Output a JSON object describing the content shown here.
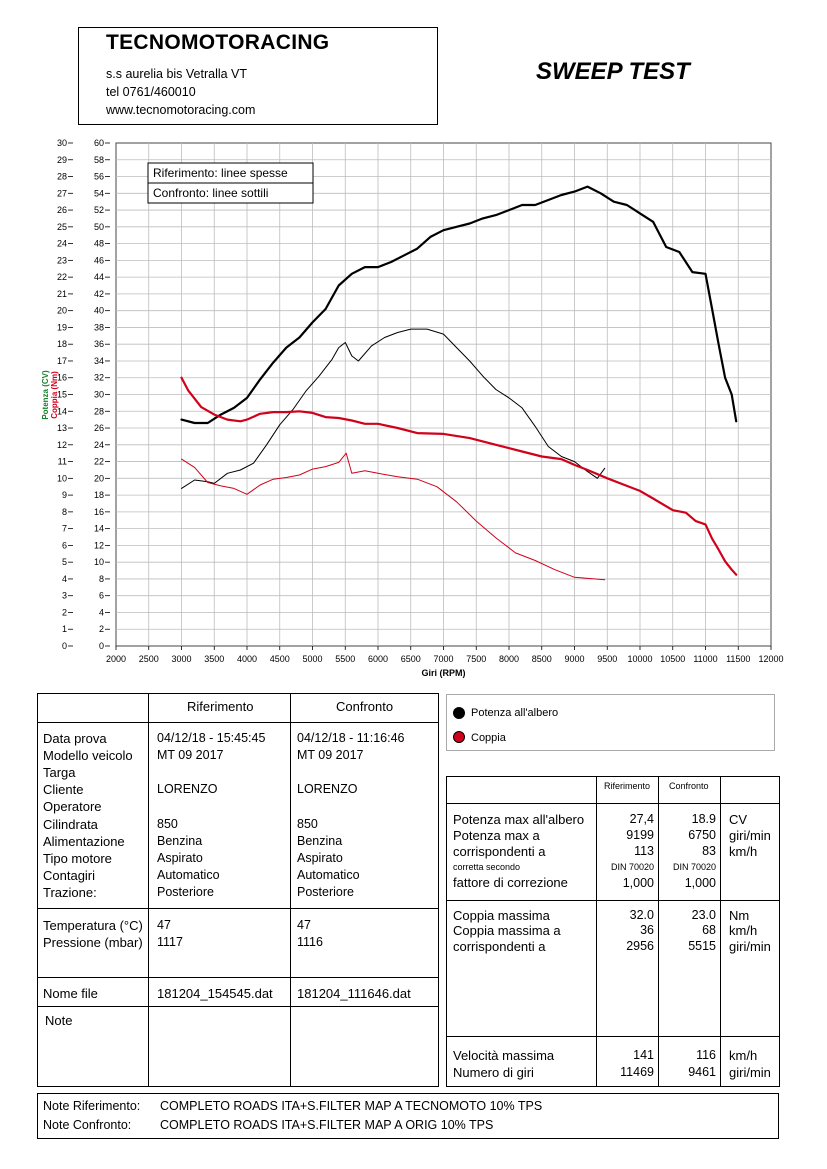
{
  "header": {
    "company": "TECNOMOTORACING",
    "address": "s.s aurelia bis  Vetralla  VT",
    "phone": "tel 0761/460010",
    "web": "www.tecnomotoracing.com",
    "title": "SWEEP TEST"
  },
  "chart_data": {
    "type": "line",
    "xlabel": "Giri (RPM)",
    "ylabel_power": "Potenza (CV)",
    "ylabel_torque": "Coppia (Nm)",
    "xlim": [
      2000,
      12000
    ],
    "x_ticks": [
      2000,
      2500,
      3000,
      3500,
      4000,
      4500,
      5000,
      5500,
      6000,
      6500,
      7000,
      7500,
      8000,
      8500,
      9000,
      9500,
      10000,
      10500,
      11000,
      11500,
      12000
    ],
    "ylim_power": [
      0,
      30
    ],
    "ylim_torque": [
      0,
      60
    ],
    "power_ticks": [
      0,
      1,
      2,
      3,
      4,
      5,
      6,
      7,
      8,
      9,
      10,
      11,
      12,
      13,
      14,
      15,
      16,
      17,
      18,
      19,
      20,
      21,
      22,
      23,
      24,
      25,
      26,
      27,
      28,
      29,
      30
    ],
    "torque_ticks": [
      0,
      2,
      4,
      6,
      8,
      10,
      12,
      14,
      16,
      18,
      20,
      22,
      24,
      26,
      28,
      30,
      32,
      34,
      36,
      38,
      40,
      42,
      44,
      46,
      48,
      50,
      52,
      54,
      56,
      58,
      60
    ],
    "grid": true,
    "legend_box": [
      "Riferimento: linee spesse",
      "Confronto: linee sottili"
    ],
    "series": [
      {
        "name": "Potenza all'albero",
        "run": "Riferimento",
        "color": "#000000",
        "width": 2.2,
        "axis": "power",
        "x": [
          3000,
          3200,
          3400,
          3600,
          3800,
          4000,
          4200,
          4400,
          4600,
          4800,
          5000,
          5200,
          5400,
          5600,
          5800,
          6000,
          6200,
          6400,
          6600,
          6800,
          7000,
          7200,
          7400,
          7600,
          7800,
          8000,
          8200,
          8400,
          8600,
          8800,
          9000,
          9199,
          9400,
          9600,
          9800,
          10000,
          10200,
          10400,
          10600,
          10800,
          11000,
          11100,
          11200,
          11300,
          11400,
          11469
        ],
        "y": [
          13.5,
          13.3,
          13.3,
          13.8,
          14.2,
          14.8,
          15.9,
          16.9,
          17.8,
          18.4,
          19.3,
          20.1,
          21.5,
          22.2,
          22.6,
          22.6,
          22.9,
          23.3,
          23.7,
          24.4,
          24.8,
          25.0,
          25.2,
          25.5,
          25.7,
          26.0,
          26.3,
          26.3,
          26.6,
          26.9,
          27.1,
          27.4,
          27.0,
          26.5,
          26.3,
          25.8,
          25.3,
          23.8,
          23.5,
          22.3,
          22.2,
          20.1,
          18.0,
          16.0,
          15.0,
          13.4
        ]
      },
      {
        "name": "Potenza all'albero",
        "run": "Confronto",
        "color": "#000000",
        "width": 1.0,
        "axis": "power",
        "x": [
          3000,
          3200,
          3400,
          3500,
          3700,
          3900,
          4100,
          4300,
          4500,
          4700,
          4900,
          5100,
          5300,
          5400,
          5500,
          5600,
          5700,
          5900,
          6100,
          6300,
          6500,
          6750,
          7000,
          7200,
          7400,
          7600,
          7800,
          8000,
          8200,
          8400,
          8600,
          8800,
          9000,
          9200,
          9350,
          9461
        ],
        "y": [
          9.4,
          9.9,
          9.8,
          9.7,
          10.3,
          10.5,
          10.9,
          12.0,
          13.2,
          14.1,
          15.2,
          16.1,
          17.1,
          17.8,
          18.1,
          17.3,
          17.0,
          17.9,
          18.4,
          18.7,
          18.9,
          18.9,
          18.6,
          17.8,
          17.0,
          16.1,
          15.3,
          14.8,
          14.2,
          13.1,
          11.9,
          11.3,
          11.0,
          10.4,
          10.0,
          10.6
        ]
      },
      {
        "name": "Coppia",
        "run": "Riferimento",
        "color": "#d0021b",
        "width": 2.2,
        "axis": "torque",
        "x": [
          3000,
          3100,
          3300,
          3500,
          3700,
          3900,
          4000,
          4200,
          4400,
          4600,
          4800,
          5000,
          5200,
          5400,
          5600,
          5800,
          6000,
          6300,
          6600,
          7000,
          7400,
          7800,
          8200,
          8500,
          8800,
          9000,
          9200,
          9500,
          9800,
          10000,
          10200,
          10500,
          10700,
          10850,
          11000,
          11100,
          11200,
          11300,
          11400,
          11469
        ],
        "y": [
          32.0,
          30.5,
          28.5,
          27.6,
          27.0,
          26.8,
          27.0,
          27.7,
          27.9,
          27.9,
          28.0,
          27.8,
          27.3,
          27.2,
          26.9,
          26.5,
          26.5,
          26.0,
          25.4,
          25.3,
          24.8,
          24.0,
          23.2,
          22.6,
          22.3,
          21.6,
          21.0,
          20.0,
          19.1,
          18.5,
          17.6,
          16.2,
          15.9,
          14.9,
          14.5,
          12.8,
          11.5,
          10.1,
          9.1,
          8.5
        ]
      },
      {
        "name": "Coppia",
        "run": "Confronto",
        "color": "#d0021b",
        "width": 1.0,
        "axis": "torque",
        "x": [
          3000,
          3200,
          3400,
          3600,
          3800,
          4000,
          4200,
          4400,
          4600,
          4800,
          5000,
          5200,
          5400,
          5515,
          5600,
          5800,
          6000,
          6300,
          6600,
          6900,
          7200,
          7500,
          7800,
          8100,
          8400,
          8700,
          9000,
          9300,
          9461
        ],
        "y": [
          22.3,
          21.3,
          19.5,
          19.1,
          18.8,
          18.1,
          19.2,
          19.9,
          20.1,
          20.4,
          21.1,
          21.4,
          21.9,
          23.0,
          20.6,
          20.9,
          20.6,
          20.2,
          19.9,
          19.0,
          17.2,
          14.9,
          12.9,
          11.1,
          10.2,
          9.1,
          8.2,
          8.0,
          7.9
        ]
      }
    ]
  },
  "legend": [
    {
      "label": "Potenza all'albero",
      "color": "#000000"
    },
    {
      "label": "Coppia",
      "color": "#d0021b"
    }
  ],
  "table": {
    "col_riferimento": "Riferimento",
    "col_confronto": "Confronto",
    "labels": [
      "Data prova",
      "Modello veicolo",
      "Targa",
      "Cliente",
      "Operatore",
      "Cilindrata",
      "Alimentazione",
      "Tipo motore",
      "Contagiri",
      "Trazione:"
    ],
    "riferimento": [
      "04/12/18 - 15:45:45",
      "MT 09 2017",
      "",
      "LORENZO",
      "",
      "850",
      "Benzina",
      "Aspirato",
      "Automatico",
      "Posteriore"
    ],
    "confronto": [
      "04/12/18 - 11:16:46",
      "MT 09 2017",
      "",
      "LORENZO",
      "",
      "850",
      "Benzina",
      "Aspirato",
      "Automatico",
      "Posteriore"
    ],
    "env_labels": [
      "Temperatura (°C)",
      "Pressione (mbar)"
    ],
    "env_riferimento": [
      "47",
      "1117"
    ],
    "env_confronto": [
      "47",
      "1116"
    ],
    "file_label": "Nome file",
    "file_riferimento": "181204_154545.dat",
    "file_confronto": "181204_111646.dat",
    "note_label": "Note"
  },
  "results": {
    "col_riferimento": "Riferimento",
    "col_confronto": "Confronto",
    "rows1": [
      {
        "label": "Potenza max all'albero",
        "rif": "27,4",
        "conf": "18.9",
        "unit": "CV"
      },
      {
        "label": "Potenza max a",
        "rif": "9199",
        "conf": "6750",
        "unit": "giri/min"
      },
      {
        "label": "corrispondenti a",
        "rif": "113",
        "conf": "83",
        "unit": "km/h"
      }
    ],
    "corretta_label": "corretta secondo",
    "corretta_rif": "DIN 70020",
    "corretta_conf": "DIN 70020",
    "fattore_label": "fattore di correzione",
    "fattore_rif": "1,000",
    "fattore_conf": "1,000",
    "rows2": [
      {
        "label": "Coppia massima",
        "rif": "32.0",
        "conf": "23.0",
        "unit": "Nm"
      },
      {
        "label": "Coppia massima a",
        "rif": "36",
        "conf": "68",
        "unit": "km/h"
      },
      {
        "label": "corrispondenti a",
        "rif": "2956",
        "conf": "5515",
        "unit": "giri/min"
      }
    ],
    "rows3": [
      {
        "label": "Velocità massima",
        "rif": "141",
        "conf": "116",
        "unit": "km/h"
      },
      {
        "label": "Numero di giri",
        "rif": "11469",
        "conf": "9461",
        "unit": "giri/min"
      }
    ]
  },
  "notes": {
    "rif_label": "Note Riferimento:",
    "rif_text": "COMPLETO ROADS ITA+S.FILTER MAP A TECNOMOTO 10% TPS",
    "conf_label": "Note Confronto:",
    "conf_text": "COMPLETO ROADS ITA+S.FILTER MAP A ORIG 10% TPS"
  }
}
